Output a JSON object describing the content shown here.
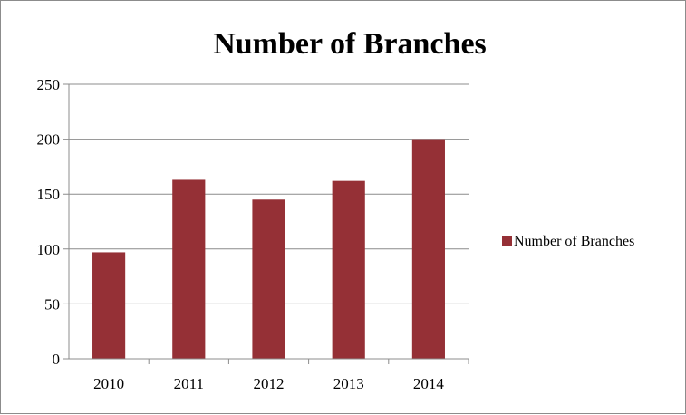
{
  "chart_data": {
    "type": "bar",
    "title": "Number of Branches",
    "xlabel": "",
    "ylabel": "",
    "categories": [
      "2010",
      "2011",
      "2012",
      "2013",
      "2014"
    ],
    "series": [
      {
        "name": "Number of Branches",
        "values": [
          97,
          163,
          145,
          162,
          200
        ]
      }
    ],
    "ylim": [
      0,
      250
    ],
    "yticks": [
      0,
      50,
      100,
      150,
      200,
      250
    ],
    "grid": true,
    "legend_position": "right",
    "colors": {
      "bar": "#953036",
      "grid": "#8c8c8c",
      "axis": "#8c8c8c"
    }
  }
}
